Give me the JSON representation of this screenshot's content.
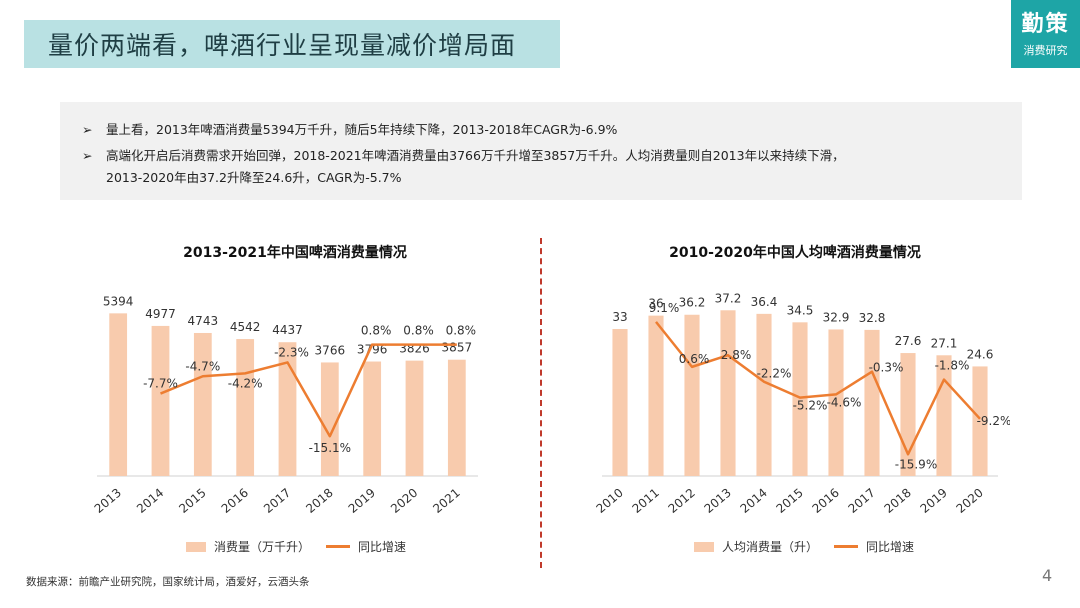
{
  "header": {
    "title": "量价两端看，啤酒行业呈现量减价增局面"
  },
  "logo": {
    "main": "勤策",
    "sub": "消费研究"
  },
  "summary": {
    "bullets": [
      {
        "arrow": "➢",
        "text": "量上看，2013年啤酒消费量5394万千升，随后5年持续下降，2013-2018年CAGR为-6.9%"
      },
      {
        "arrow": "➢",
        "text": "高端化开启后消费需求开始回弹，2018-2021年啤酒消费量由3766万千升增至3857万千升。人均消费量则自2013年以来持续下滑，",
        "continuation": "2013-2020年由37.2升降至24.6升，CAGR为-5.7%"
      }
    ]
  },
  "chart_data": [
    {
      "type": "bar",
      "title": "2013-2021年中国啤酒消费量情况",
      "categories": [
        "2013",
        "2014",
        "2015",
        "2016",
        "2017",
        "2018",
        "2019",
        "2020",
        "2021"
      ],
      "series": [
        {
          "name": "消费量（万千升）",
          "kind": "bar",
          "values": [
            5394,
            4977,
            4743,
            4542,
            4437,
            3766,
            3796,
            3826,
            3857
          ],
          "labels": [
            "5394",
            "4977",
            "4743",
            "4542",
            "4437",
            "3766",
            "3796",
            "3826",
            "3857"
          ]
        },
        {
          "name": "同比增速",
          "kind": "line",
          "values": [
            null,
            -7.7,
            -4.7,
            -4.2,
            -2.3,
            -15.1,
            0.8,
            0.8,
            0.8
          ],
          "labels": [
            "",
            "-7.7%",
            "-4.7%",
            "-4.2%",
            "-2.3%",
            "-15.1%",
            "0.8%",
            "0.8%",
            "0.8%"
          ]
        }
      ],
      "legend": [
        "消费量（万千升）",
        "同比增速"
      ],
      "legend_position": "bottom",
      "bar_ylim": [
        0,
        6500
      ],
      "line_ylim": [
        -22,
        12
      ]
    },
    {
      "type": "bar",
      "title": "2010-2020年中国人均啤酒消费量情况",
      "categories": [
        "2010",
        "2011",
        "2012",
        "2013",
        "2014",
        "2015",
        "2016",
        "2017",
        "2018",
        "2019",
        "2020"
      ],
      "series": [
        {
          "name": "人均消费量（升）",
          "kind": "bar",
          "values": [
            33,
            36,
            36.2,
            37.2,
            36.4,
            34.5,
            32.9,
            32.8,
            27.6,
            27.1,
            24.6
          ],
          "labels": [
            "33",
            "36",
            "36.2",
            "37.2",
            "36.4",
            "34.5",
            "32.9",
            "32.8",
            "27.6",
            "27.1",
            "24.6"
          ]
        },
        {
          "name": "同比增速",
          "kind": "line",
          "values": [
            null,
            9.1,
            0.6,
            2.8,
            -2.2,
            -5.2,
            -4.6,
            -0.3,
            -15.9,
            -1.8,
            -9.2
          ],
          "labels": [
            "",
            "9.1%",
            "0.6%",
            "2.8%",
            "-2.2%",
            "-5.2%",
            "-4.6%",
            "-0.3%",
            "-15.9%",
            "-1.8%",
            "-9.2%"
          ]
        }
      ],
      "legend": [
        "人均消费量（升）",
        "同比增速"
      ],
      "legend_position": "bottom",
      "bar_ylim": [
        0,
        44
      ],
      "line_ylim": [
        -20,
        17
      ]
    }
  ],
  "colors": {
    "bar": "#f8cbad",
    "line": "#ed7d31",
    "title_bg": "#b9e1e3",
    "logo_bg": "#1ea5a6"
  },
  "footer": {
    "source": "数据来源：前瞻产业研究院，国家统计局，酒爱好，云酒头条",
    "page": "4"
  }
}
